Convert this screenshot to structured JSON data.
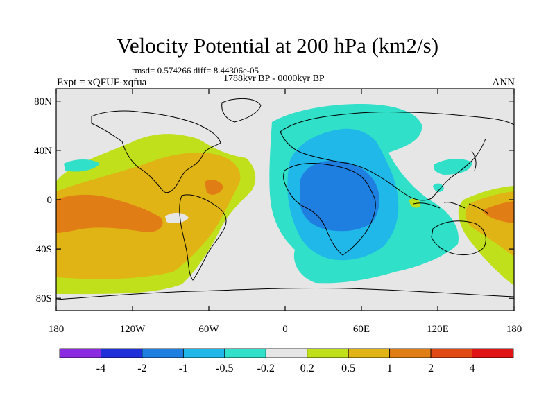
{
  "title": "Velocity Potential at 200 hPa (km2/s)",
  "stats_line": "rmsd= 0.574266 diff= 8.44306e-05",
  "period_line": "1788kyr BP - 0000kyr BP",
  "experiment_label": "Expt = xQFUF-xqfua",
  "season_label": "ANN",
  "map": {
    "projection": "cylindrical equidistant",
    "lon_range": [
      -180,
      180
    ],
    "lat_range": [
      -90,
      90
    ],
    "x_ticks": [
      {
        "lon": -180,
        "label": "180"
      },
      {
        "lon": -120,
        "label": "120W"
      },
      {
        "lon": -60,
        "label": "60W"
      },
      {
        "lon": 0,
        "label": "0"
      },
      {
        "lon": 60,
        "label": "60E"
      },
      {
        "lon": 120,
        "label": "120E"
      },
      {
        "lon": 180,
        "label": "180"
      }
    ],
    "y_ticks": [
      {
        "lat": 80,
        "label": "80N"
      },
      {
        "lat": 40,
        "label": "40N"
      },
      {
        "lat": 0,
        "label": "0"
      },
      {
        "lat": -40,
        "label": "40S"
      },
      {
        "lat": -80,
        "label": "80S"
      }
    ]
  },
  "colorbar": {
    "colors": [
      "#8a2be2",
      "#2030d8",
      "#1f7fe0",
      "#1fb8e8",
      "#30e0c8",
      "#e6e6e6",
      "#bfe01a",
      "#e0b414",
      "#e07d14",
      "#e04a14",
      "#e01414"
    ],
    "labels": [
      "-4",
      "-2",
      "-1",
      "-0.5",
      "-0.2",
      "0.2",
      "0.5",
      "1",
      "2",
      "4"
    ]
  },
  "colors": {
    "missing_land": "#e6e6e6",
    "coastline": "#000000"
  }
}
